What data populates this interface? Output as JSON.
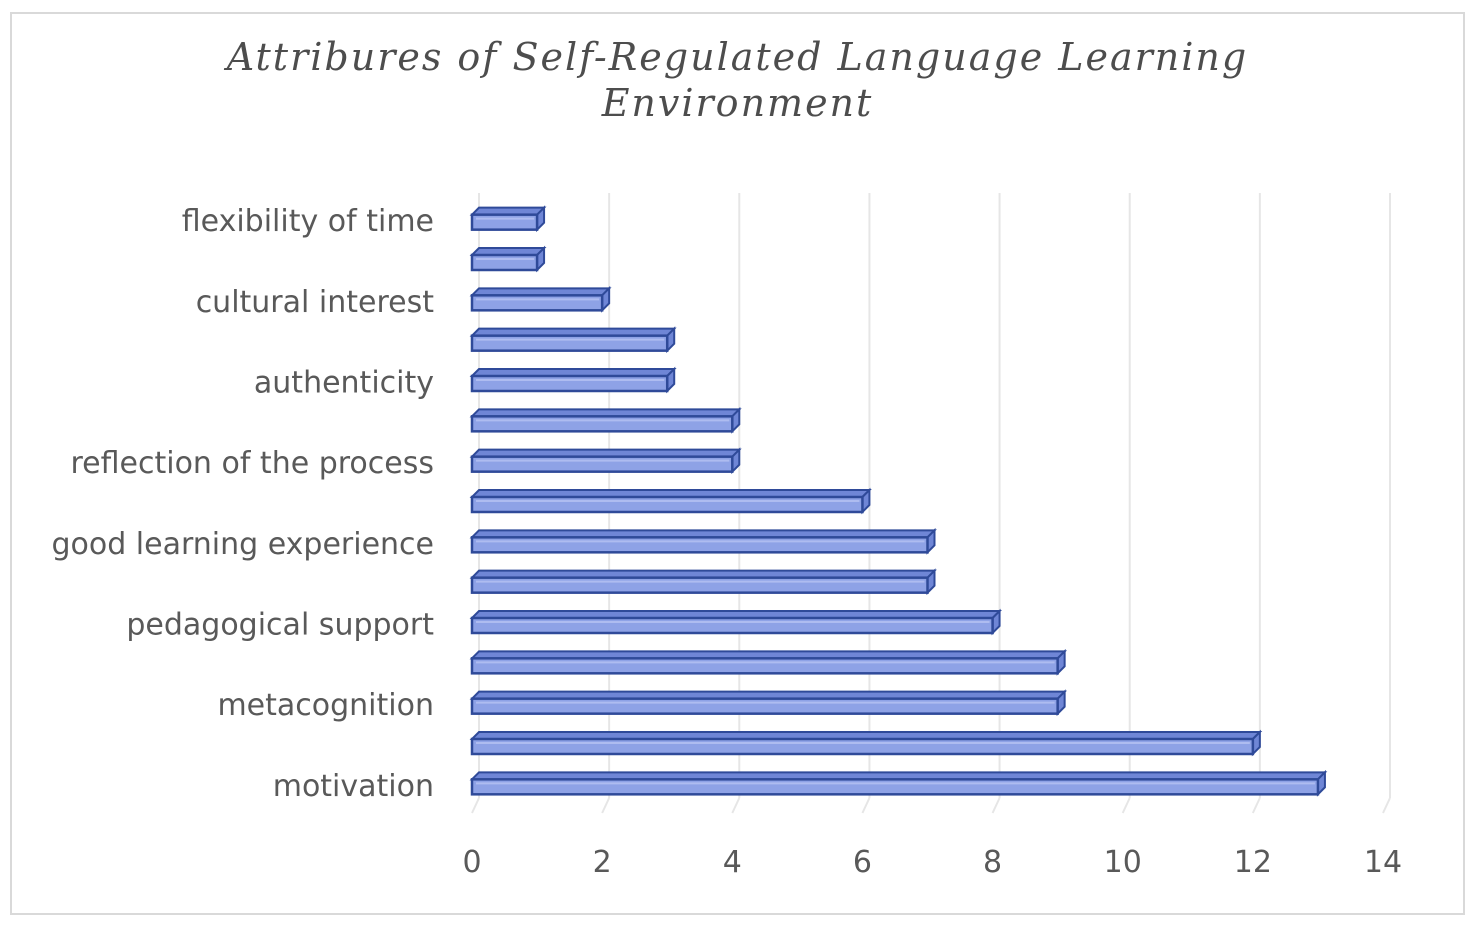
{
  "chart_data": {
    "type": "bar",
    "orientation": "horizontal",
    "title_lines": [
      "Attribures of Self-Regulated Language Learning",
      "Environment"
    ],
    "categories": [
      "motivation",
      "",
      "metacognition",
      "",
      "pedagogical support",
      "",
      "good learning experience",
      "",
      "reflection of the process",
      "",
      "authenticity",
      "",
      "cultural interest",
      "",
      "flexibility of time"
    ],
    "values": [
      13,
      12,
      9,
      9,
      8,
      7,
      7,
      6,
      4,
      4,
      3,
      3,
      2,
      1,
      1
    ],
    "xlim": [
      0,
      14
    ],
    "xticks": [
      "0",
      "2",
      "4",
      "6",
      "8",
      "10",
      "12",
      "14"
    ],
    "grid": true,
    "colors": {
      "bar_fill": "#8ea2e6",
      "bar_highlight": "#aebcf0",
      "bar_edge": "#2f4a99",
      "bar_top": "#6f86d6",
      "grid": "#e6e6e6"
    }
  }
}
